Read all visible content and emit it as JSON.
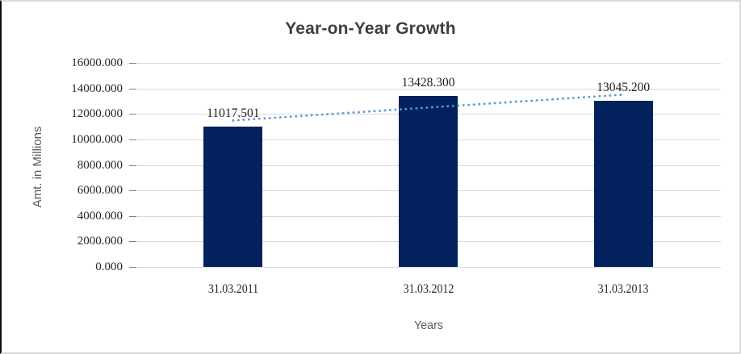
{
  "window": {
    "background": "#ffffff",
    "border_color": "#d9d9d9",
    "left_edge_color": "#0d0d0d"
  },
  "chart_data": {
    "type": "bar",
    "title": "Year-on-Year Growth",
    "xlabel": "Years",
    "ylabel": "Amt. in Millions",
    "categories": [
      "31.03.2011",
      "31.03.2012",
      "31.03.2013"
    ],
    "values": [
      11017.501,
      13428.3,
      13045.2
    ],
    "data_labels": [
      "11017.501",
      "13428.300",
      "13045.200"
    ],
    "y_ticks": [
      "16000.000",
      "14000.000",
      "12000.000",
      "10000.000",
      "8000.000",
      "6000.000",
      "4000.000",
      "2000.000",
      "0.000"
    ],
    "ylim": [
      0,
      16000
    ],
    "grid": true,
    "legend": "none",
    "bar_color": "#03215c",
    "gridline_color": "#d9d9d9",
    "tick_color": "#7f7f7f",
    "title_color": "#3f3f3f",
    "trendline": {
      "type": "linear",
      "style": "dotted",
      "color": "#5b9bd5",
      "start_value": 11483,
      "end_value": 13511
    }
  }
}
